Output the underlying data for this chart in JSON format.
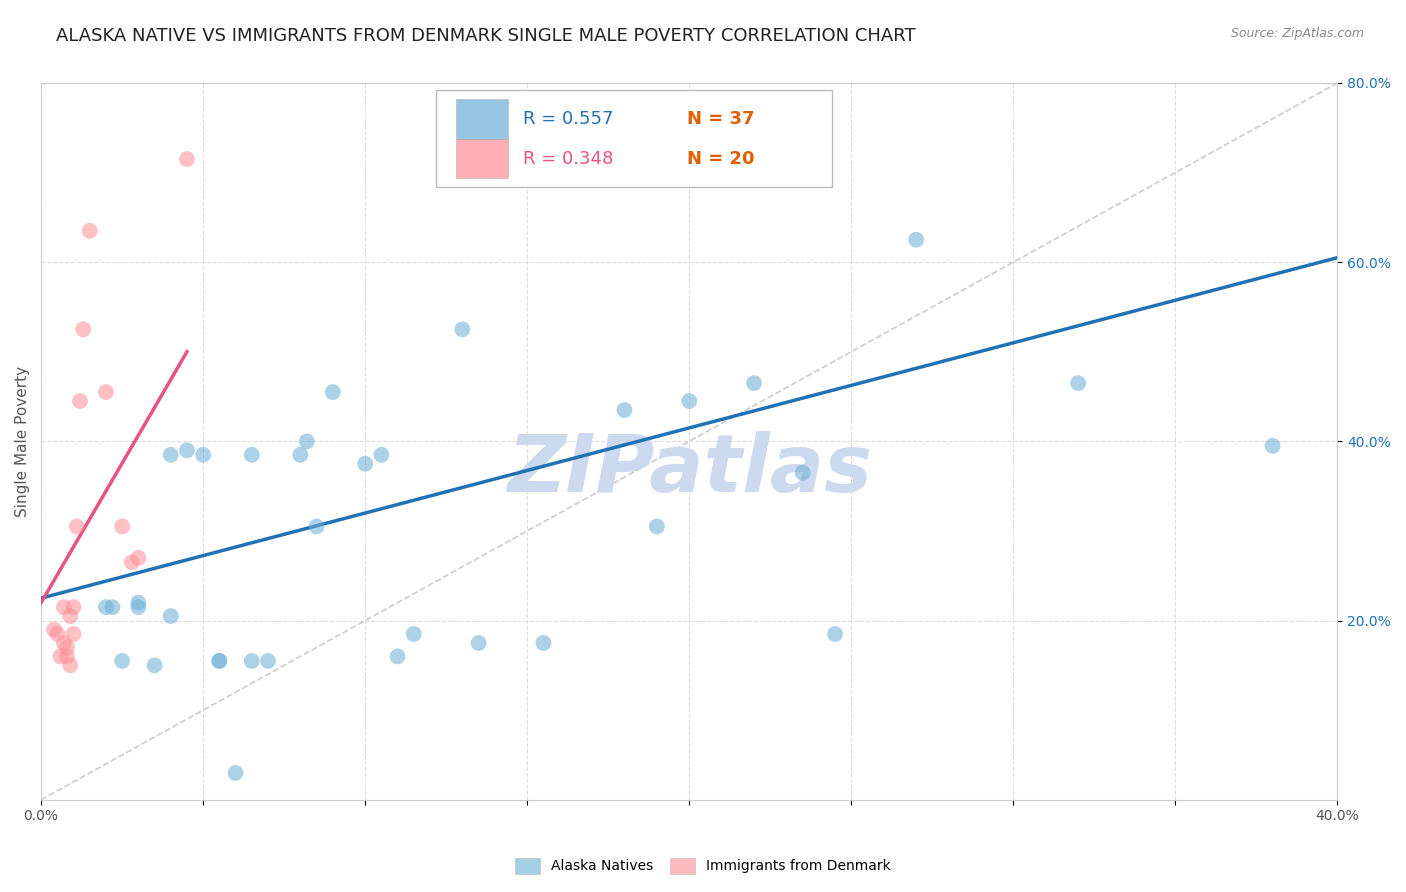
{
  "title": "ALASKA NATIVE VS IMMIGRANTS FROM DENMARK SINGLE MALE POVERTY CORRELATION CHART",
  "source": "Source: ZipAtlas.com",
  "ylabel": "Single Male Poverty",
  "xlim": [
    0.0,
    0.4
  ],
  "ylim": [
    0.0,
    0.8
  ],
  "ytick_labels": [
    "20.0%",
    "40.0%",
    "60.0%",
    "80.0%"
  ],
  "ytick_positions": [
    0.2,
    0.4,
    0.6,
    0.8
  ],
  "blue_scatter_x": [
    0.02,
    0.022,
    0.025,
    0.03,
    0.03,
    0.035,
    0.04,
    0.04,
    0.045,
    0.05,
    0.055,
    0.055,
    0.06,
    0.065,
    0.065,
    0.07,
    0.08,
    0.082,
    0.085,
    0.09,
    0.1,
    0.105,
    0.11,
    0.115,
    0.13,
    0.135,
    0.155,
    0.17,
    0.18,
    0.19,
    0.2,
    0.22,
    0.235,
    0.245,
    0.27,
    0.32,
    0.38
  ],
  "blue_scatter_y": [
    0.215,
    0.215,
    0.155,
    0.215,
    0.22,
    0.15,
    0.205,
    0.385,
    0.39,
    0.385,
    0.155,
    0.155,
    0.03,
    0.385,
    0.155,
    0.155,
    0.385,
    0.4,
    0.305,
    0.455,
    0.375,
    0.385,
    0.16,
    0.185,
    0.525,
    0.175,
    0.175,
    0.715,
    0.435,
    0.305,
    0.445,
    0.465,
    0.365,
    0.185,
    0.625,
    0.465,
    0.395
  ],
  "pink_scatter_x": [
    0.004,
    0.005,
    0.006,
    0.007,
    0.007,
    0.008,
    0.008,
    0.009,
    0.009,
    0.01,
    0.01,
    0.011,
    0.012,
    0.013,
    0.015,
    0.02,
    0.025,
    0.028,
    0.03,
    0.045
  ],
  "pink_scatter_y": [
    0.19,
    0.185,
    0.16,
    0.175,
    0.215,
    0.16,
    0.17,
    0.205,
    0.15,
    0.185,
    0.215,
    0.305,
    0.445,
    0.525,
    0.635,
    0.455,
    0.305,
    0.265,
    0.27,
    0.715
  ],
  "blue_line_x": [
    0.0,
    0.4
  ],
  "blue_line_y": [
    0.225,
    0.605
  ],
  "pink_line_x": [
    0.0,
    0.045
  ],
  "pink_line_y": [
    0.22,
    0.5
  ],
  "diagonal_line_x": [
    0.0,
    0.4
  ],
  "diagonal_line_y": [
    0.0,
    0.8
  ],
  "blue_color": "#6baed6",
  "pink_color": "#fc8d94",
  "blue_line_color": "#2171b5",
  "pink_line_color": "#e75480",
  "diagonal_color": "#cccccc",
  "background_color": "#ffffff",
  "grid_color": "#dddddd",
  "watermark": "ZIPatlas",
  "watermark_color": "#ccd9ee",
  "r_blue": "R = 0.557",
  "n_blue": "N = 37",
  "r_pink": "R = 0.348",
  "n_pink": "N = 20",
  "title_fontsize": 13,
  "axis_label_fontsize": 11,
  "tick_fontsize": 10,
  "legend_fontsize": 13
}
